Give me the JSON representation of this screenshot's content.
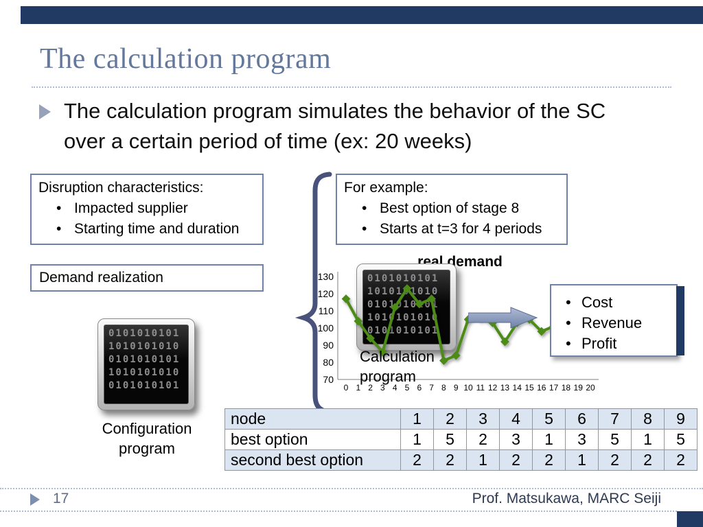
{
  "theme": {
    "bar_color": "#203A64",
    "title_color": "#64789C",
    "box_border": "#6F81A8",
    "table_border": "#7E96C4",
    "table_fill": "#DBE5F1",
    "brace_color": "#49527A",
    "arrow_color": "#7C8DB0",
    "divider_color": "#A8BCD9"
  },
  "slide": {
    "title": "The calculation program",
    "bullet_lines": [
      "The calculation program simulates the behavior of the SC",
      "over a certain period of time (ex: 20 weeks)"
    ]
  },
  "boxes": {
    "disruption": {
      "heading": "Disruption characteristics:",
      "items": [
        "Impacted supplier",
        "Starting time and duration"
      ]
    },
    "example": {
      "heading": "For example:",
      "items": [
        "Best option of stage 8",
        "Starts at t=3 for 4 periods"
      ]
    },
    "demand_label": "Demand realization",
    "outputs": {
      "items": [
        "Cost",
        "Revenue",
        "Profit"
      ]
    }
  },
  "programs": {
    "calculation_label": "Calculation program",
    "configuration_label": "Configuration program",
    "screen_lines": [
      "0101010101",
      "1010101010",
      "0101010101",
      "1010101010",
      "0101010101"
    ]
  },
  "chart_data": {
    "type": "line",
    "title": "real demand",
    "x": [
      0,
      1,
      2,
      3,
      4,
      5,
      6,
      7,
      8,
      9,
      10,
      11,
      12,
      13,
      14,
      15,
      16,
      17,
      18,
      19,
      20
    ],
    "values": [
      117,
      104,
      94,
      86,
      112,
      123,
      114,
      117,
      81,
      84,
      105,
      106,
      103,
      92,
      103,
      105,
      98,
      101,
      95,
      98,
      100
    ],
    "ylim": [
      70,
      130
    ],
    "yticks": [
      130,
      120,
      110,
      100,
      90,
      80,
      70
    ],
    "xlabel": "",
    "ylabel": "",
    "legend": "none",
    "grid": false,
    "line_color": "#4C8B16",
    "marker": "diamond"
  },
  "table": {
    "rows": [
      {
        "label": "node",
        "values": [
          "1",
          "2",
          "3",
          "4",
          "5",
          "6",
          "7",
          "8",
          "9"
        ]
      },
      {
        "label": "best option",
        "values": [
          "1",
          "5",
          "2",
          "3",
          "1",
          "3",
          "5",
          "1",
          "5"
        ]
      },
      {
        "label": "second best option",
        "values": [
          "2",
          "2",
          "1",
          "2",
          "2",
          "1",
          "2",
          "2",
          "2"
        ]
      }
    ]
  },
  "footer": {
    "page_number": "17",
    "credit": "Prof. Matsukawa, MARC Seiji"
  }
}
